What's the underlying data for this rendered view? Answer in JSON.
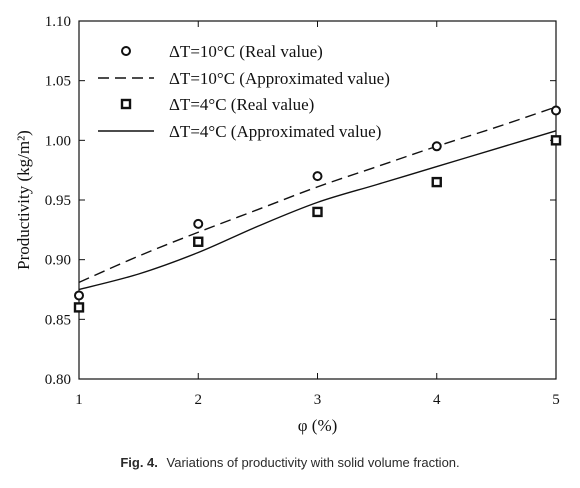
{
  "chart_data": {
    "type": "line",
    "xlabel": "φ (%)",
    "ylabel": "Productivity (kg/m²)",
    "xlim": [
      1,
      5
    ],
    "ylim": [
      0.8,
      1.1
    ],
    "x_ticks": [
      "1",
      "2",
      "3",
      "4",
      "5"
    ],
    "y_ticks": [
      "0.80",
      "0.85",
      "0.90",
      "0.95",
      "1.00",
      "1.05",
      "1.10"
    ],
    "grid": false,
    "legend_position": "top-left",
    "series": [
      {
        "name": "ΔT=10°C (Real value)",
        "style": "circle-markers",
        "x": [
          1,
          2,
          3,
          4,
          5
        ],
        "y": [
          0.87,
          0.93,
          0.97,
          0.995,
          1.025
        ]
      },
      {
        "name": "ΔT=10°C (Approximated value)",
        "style": "dashed-line",
        "x": [
          1,
          1.5,
          2,
          2.5,
          3,
          3.5,
          4,
          4.5,
          5
        ],
        "y": [
          0.881,
          0.903,
          0.923,
          0.942,
          0.961,
          0.978,
          0.995,
          1.011,
          1.028
        ]
      },
      {
        "name": "ΔT=4°C (Real value)",
        "style": "square-markers",
        "x": [
          1,
          2,
          3,
          4,
          5
        ],
        "y": [
          0.86,
          0.915,
          0.94,
          0.965,
          1.0
        ]
      },
      {
        "name": "ΔT=4°C (Approximated value)",
        "style": "solid-line",
        "x": [
          1,
          1.5,
          2,
          2.5,
          3,
          3.5,
          4,
          4.5,
          5
        ],
        "y": [
          0.875,
          0.888,
          0.906,
          0.928,
          0.948,
          0.963,
          0.978,
          0.993,
          1.008
        ]
      }
    ],
    "caption": {
      "label": "Fig. 4.",
      "text": "Variations of productivity with solid volume fraction."
    }
  },
  "colors": {
    "ink": "#111111",
    "caption": "#2a2a2a"
  }
}
